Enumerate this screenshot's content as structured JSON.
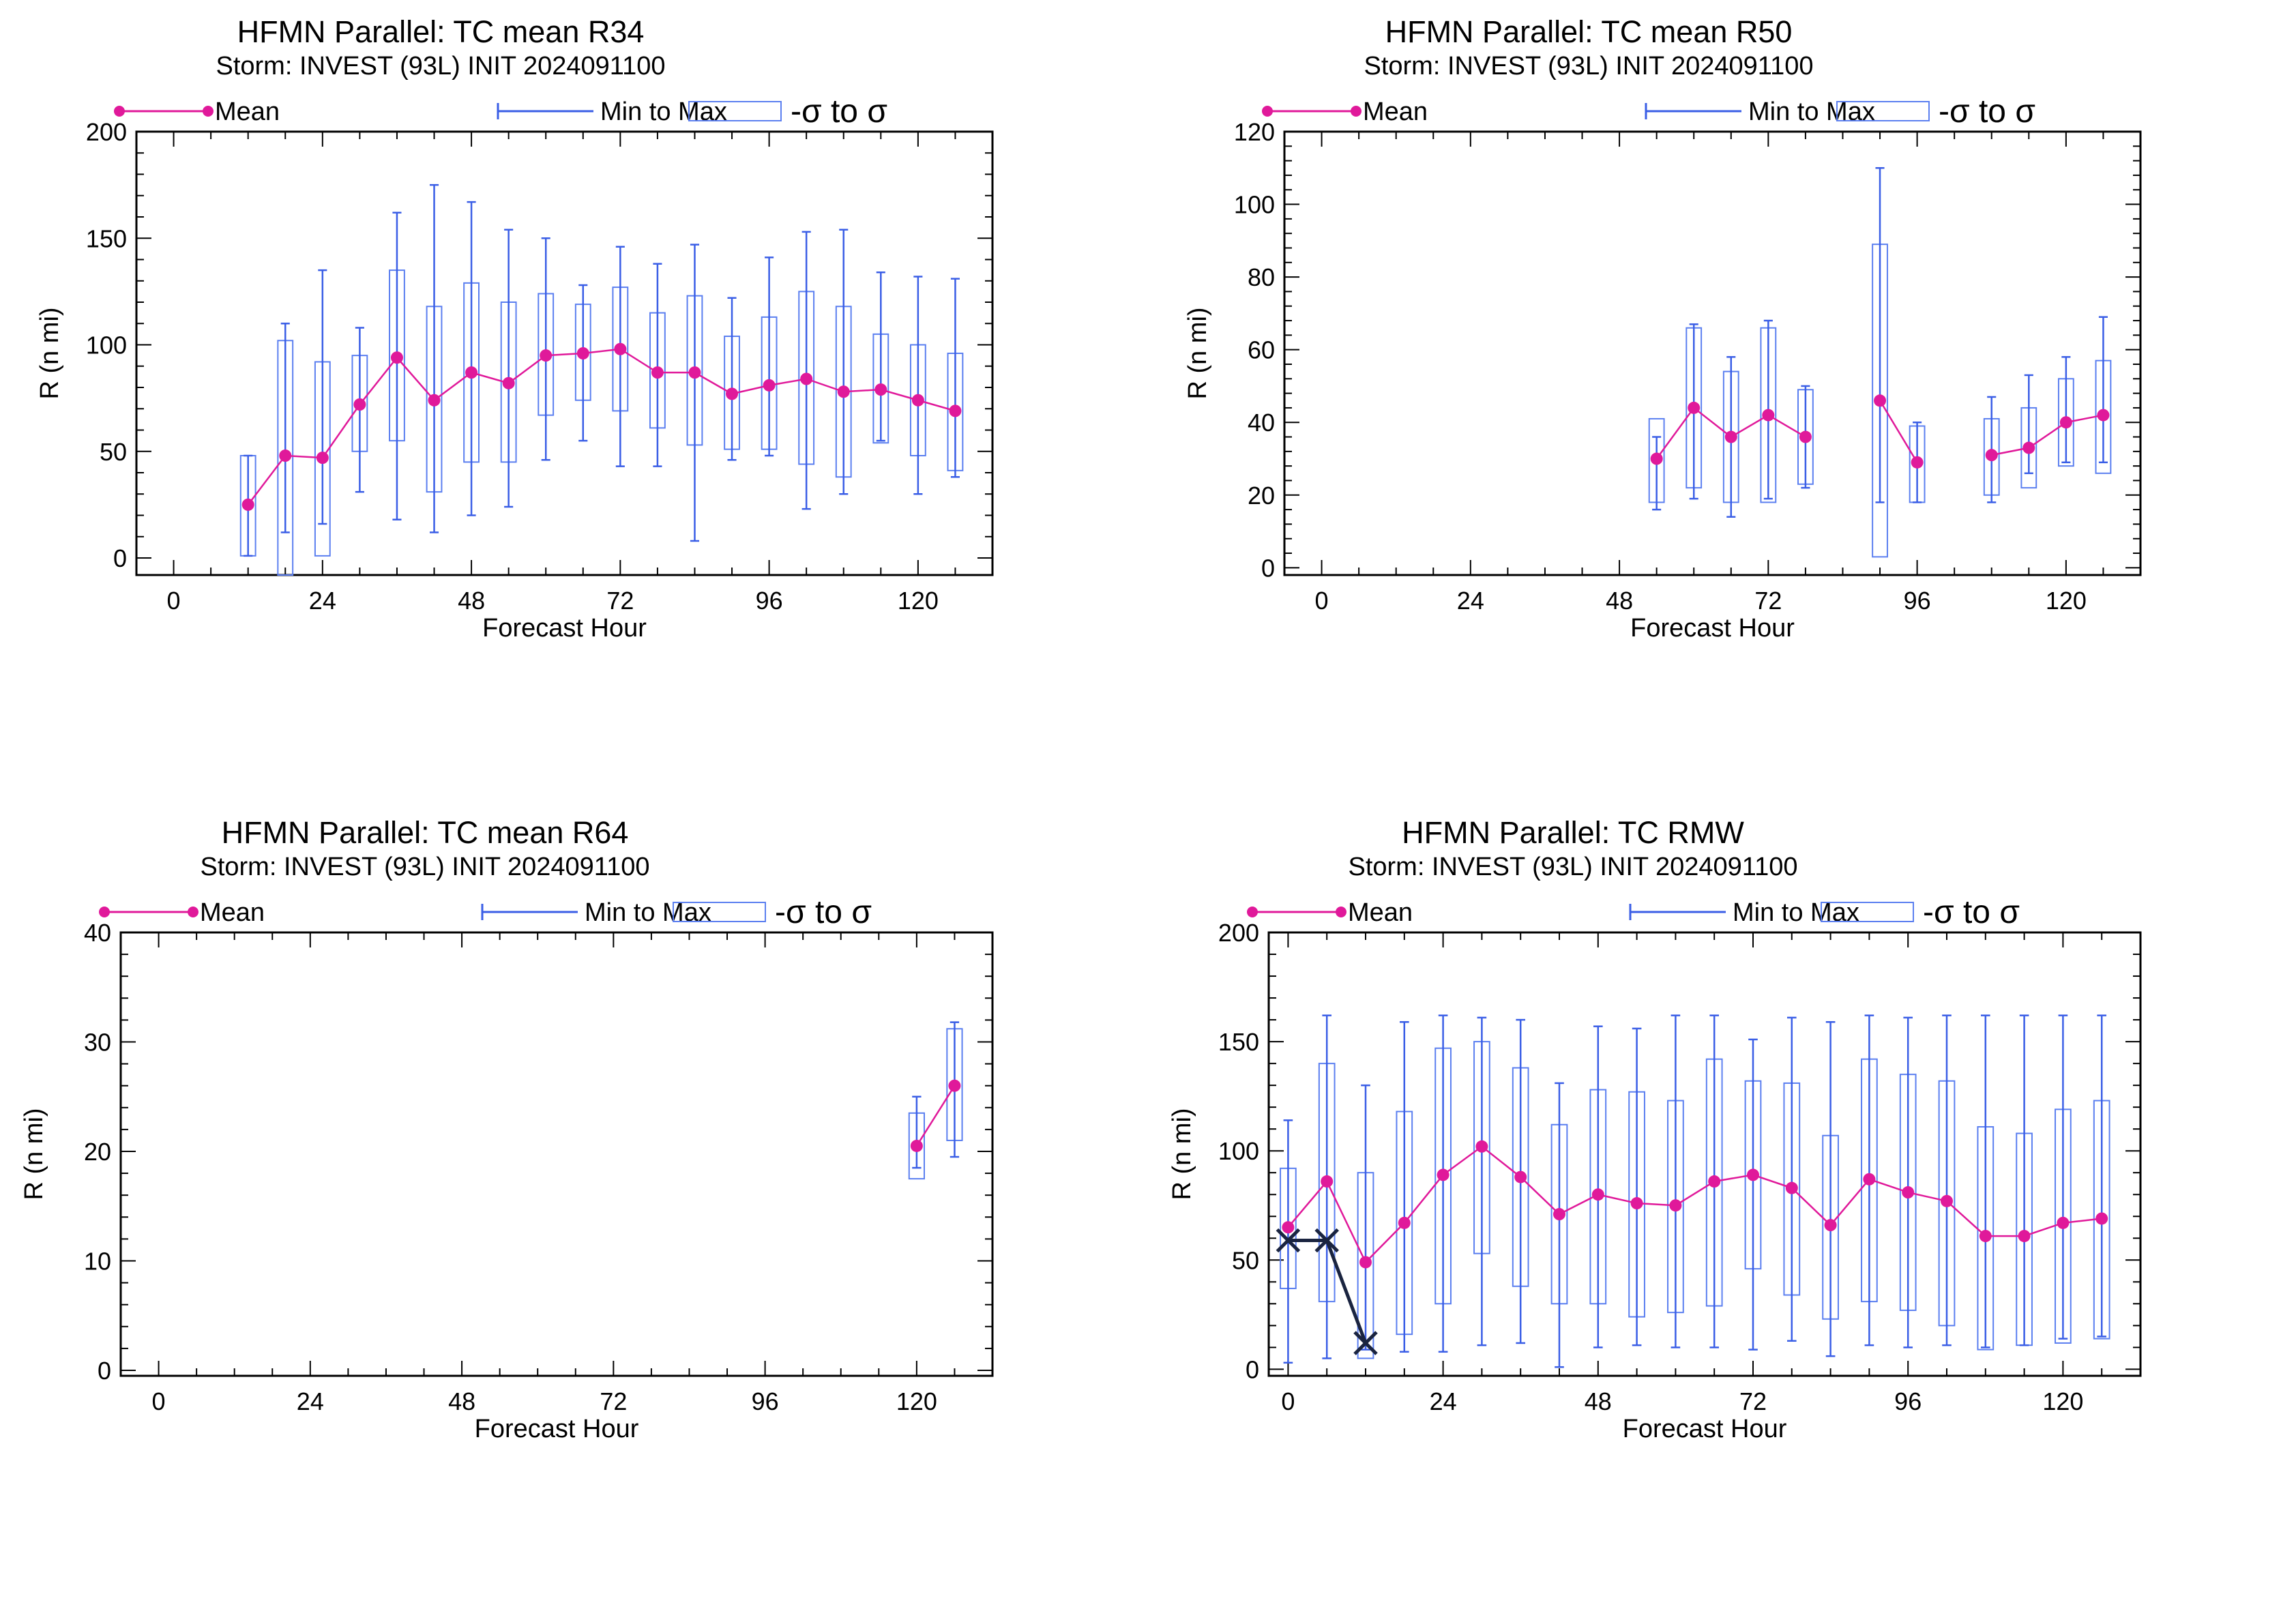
{
  "chart_data": [
    {
      "type": "box",
      "title": "HFMN Parallel: TC mean R34",
      "subtitle": "Storm: INVEST (93L) INIT 2024091100",
      "legend": {
        "mean": "Mean",
        "minmax": "Min to Max",
        "sigma": "-σ to σ"
      },
      "xlabel": "Forecast Hour",
      "ylabel": "R (n mi)",
      "xlim": [
        -6,
        132
      ],
      "ylim": [
        -8,
        200
      ],
      "xticks": [
        0,
        24,
        48,
        72,
        96,
        120
      ],
      "yticks": [
        0,
        50,
        100,
        150,
        200
      ],
      "points": [
        {
          "x": 12,
          "mean": 25,
          "min": 1,
          "max": 48,
          "lo": 1,
          "hi": 48
        },
        {
          "x": 18,
          "mean": 48,
          "min": 12,
          "max": 110,
          "lo": -8,
          "hi": 102
        },
        {
          "x": 24,
          "mean": 47,
          "min": 16,
          "max": 135,
          "lo": 1,
          "hi": 92
        },
        {
          "x": 30,
          "mean": 72,
          "min": 31,
          "max": 108,
          "lo": 50,
          "hi": 95
        },
        {
          "x": 36,
          "mean": 94,
          "min": 18,
          "max": 162,
          "lo": 55,
          "hi": 135
        },
        {
          "x": 42,
          "mean": 74,
          "min": 12,
          "max": 175,
          "lo": 31,
          "hi": 118
        },
        {
          "x": 48,
          "mean": 87,
          "min": 20,
          "max": 167,
          "lo": 45,
          "hi": 129
        },
        {
          "x": 54,
          "mean": 82,
          "min": 24,
          "max": 154,
          "lo": 45,
          "hi": 120
        },
        {
          "x": 60,
          "mean": 95,
          "min": 46,
          "max": 150,
          "lo": 67,
          "hi": 124
        },
        {
          "x": 66,
          "mean": 96,
          "min": 55,
          "max": 128,
          "lo": 74,
          "hi": 119
        },
        {
          "x": 72,
          "mean": 98,
          "min": 43,
          "max": 146,
          "lo": 69,
          "hi": 127
        },
        {
          "x": 78,
          "mean": 87,
          "min": 43,
          "max": 138,
          "lo": 61,
          "hi": 115
        },
        {
          "x": 84,
          "mean": 87,
          "min": 8,
          "max": 147,
          "lo": 53,
          "hi": 123
        },
        {
          "x": 90,
          "mean": 77,
          "min": 46,
          "max": 122,
          "lo": 51,
          "hi": 104
        },
        {
          "x": 96,
          "mean": 81,
          "min": 48,
          "max": 141,
          "lo": 51,
          "hi": 113
        },
        {
          "x": 102,
          "mean": 84,
          "min": 23,
          "max": 153,
          "lo": 44,
          "hi": 125
        },
        {
          "x": 108,
          "mean": 78,
          "min": 30,
          "max": 154,
          "lo": 38,
          "hi": 118
        },
        {
          "x": 114,
          "mean": 79,
          "min": 55,
          "max": 134,
          "lo": 54,
          "hi": 105
        },
        {
          "x": 120,
          "mean": 74,
          "min": 30,
          "max": 132,
          "lo": 48,
          "hi": 100
        },
        {
          "x": 126,
          "mean": 69,
          "min": 38,
          "max": 131,
          "lo": 41,
          "hi": 96
        }
      ]
    },
    {
      "type": "box",
      "title": "HFMN Parallel: TC mean R50",
      "subtitle": "Storm: INVEST (93L) INIT 2024091100",
      "legend": {
        "mean": "Mean",
        "minmax": "Min to Max",
        "sigma": "-σ to σ"
      },
      "xlabel": "Forecast Hour",
      "ylabel": "R (n mi)",
      "xlim": [
        -6,
        132
      ],
      "ylim": [
        -2,
        120
      ],
      "xticks": [
        0,
        24,
        48,
        72,
        96,
        120
      ],
      "yticks": [
        0,
        20,
        40,
        60,
        80,
        100,
        120
      ],
      "points": [
        {
          "x": 54,
          "mean": 30,
          "min": 16,
          "max": 36,
          "lo": 18,
          "hi": 41
        },
        {
          "x": 60,
          "mean": 44,
          "min": 19,
          "max": 67,
          "lo": 22,
          "hi": 66
        },
        {
          "x": 66,
          "mean": 36,
          "min": 14,
          "max": 58,
          "lo": 18,
          "hi": 54
        },
        {
          "x": 72,
          "mean": 42,
          "min": 19,
          "max": 68,
          "lo": 18,
          "hi": 66
        },
        {
          "x": 78,
          "mean": 36,
          "min": 22,
          "max": 50,
          "lo": 23,
          "hi": 49
        },
        {
          "x": 90,
          "mean": 46,
          "min": 18,
          "max": 110,
          "lo": 3,
          "hi": 89
        },
        {
          "x": 96,
          "mean": 29,
          "min": 18,
          "max": 40,
          "lo": 18,
          "hi": 39
        },
        {
          "x": 108,
          "mean": 31,
          "min": 18,
          "max": 47,
          "lo": 20,
          "hi": 41
        },
        {
          "x": 114,
          "mean": 33,
          "min": 26,
          "max": 53,
          "lo": 22,
          "hi": 44
        },
        {
          "x": 120,
          "mean": 40,
          "min": 29,
          "max": 58,
          "lo": 28,
          "hi": 52
        },
        {
          "x": 126,
          "mean": 42,
          "min": 29,
          "max": 69,
          "lo": 26,
          "hi": 57
        }
      ]
    },
    {
      "type": "box",
      "title": "HFMN Parallel: TC mean R64",
      "subtitle": "Storm: INVEST (93L) INIT 2024091100",
      "legend": {
        "mean": "Mean",
        "minmax": "Min to Max",
        "sigma": "-σ to σ"
      },
      "xlabel": "Forecast Hour",
      "ylabel": "R (n mi)",
      "xlim": [
        -6,
        132
      ],
      "ylim": [
        -0.5,
        40
      ],
      "xticks": [
        0,
        24,
        48,
        72,
        96,
        120
      ],
      "yticks": [
        0,
        10,
        20,
        30,
        40
      ],
      "points": [
        {
          "x": 120,
          "mean": 20.5,
          "min": 18.5,
          "max": 25,
          "lo": 17.5,
          "hi": 23.5
        },
        {
          "x": 126,
          "mean": 26,
          "min": 19.5,
          "max": 31.8,
          "lo": 21,
          "hi": 31.2
        }
      ]
    },
    {
      "type": "box",
      "title": "HFMN Parallel: TC RMW",
      "subtitle": "Storm: INVEST (93L) INIT 2024091100",
      "legend": {
        "mean": "Mean",
        "minmax": "Min to Max",
        "sigma": "-σ to σ"
      },
      "xlabel": "Forecast Hour",
      "ylabel": "R (n mi)",
      "xlim": [
        -3,
        132
      ],
      "ylim": [
        -3,
        200
      ],
      "xticks": [
        0,
        24,
        48,
        72,
        96,
        120
      ],
      "yticks": [
        0,
        50,
        100,
        150,
        200
      ],
      "points": [
        {
          "x": 0,
          "mean": 65,
          "min": 3,
          "max": 114,
          "lo": 37,
          "hi": 92
        },
        {
          "x": 6,
          "mean": 86,
          "min": 5,
          "max": 162,
          "lo": 31,
          "hi": 140
        },
        {
          "x": 12,
          "mean": 49,
          "min": 9,
          "max": 130,
          "lo": 5,
          "hi": 90
        },
        {
          "x": 18,
          "mean": 67,
          "min": 8,
          "max": 159,
          "lo": 16,
          "hi": 118
        },
        {
          "x": 24,
          "mean": 89,
          "min": 8,
          "max": 162,
          "lo": 30,
          "hi": 147
        },
        {
          "x": 30,
          "mean": 102,
          "min": 11,
          "max": 161,
          "lo": 53,
          "hi": 150
        },
        {
          "x": 36,
          "mean": 88,
          "min": 12,
          "max": 160,
          "lo": 38,
          "hi": 138
        },
        {
          "x": 42,
          "mean": 71,
          "min": 1,
          "max": 131,
          "lo": 30,
          "hi": 112
        },
        {
          "x": 48,
          "mean": 80,
          "min": 10,
          "max": 157,
          "lo": 30,
          "hi": 128
        },
        {
          "x": 54,
          "mean": 76,
          "min": 11,
          "max": 156,
          "lo": 24,
          "hi": 127
        },
        {
          "x": 60,
          "mean": 75,
          "min": 10,
          "max": 162,
          "lo": 26,
          "hi": 123
        },
        {
          "x": 66,
          "mean": 86,
          "min": 10,
          "max": 162,
          "lo": 29,
          "hi": 142
        },
        {
          "x": 72,
          "mean": 89,
          "min": 9,
          "max": 151,
          "lo": 46,
          "hi": 132
        },
        {
          "x": 78,
          "mean": 83,
          "min": 13,
          "max": 161,
          "lo": 34,
          "hi": 131
        },
        {
          "x": 84,
          "mean": 66,
          "min": 6,
          "max": 159,
          "lo": 23,
          "hi": 107
        },
        {
          "x": 90,
          "mean": 87,
          "min": 11,
          "max": 162,
          "lo": 31,
          "hi": 142
        },
        {
          "x": 96,
          "mean": 81,
          "min": 10,
          "max": 161,
          "lo": 27,
          "hi": 135
        },
        {
          "x": 102,
          "mean": 77,
          "min": 11,
          "max": 162,
          "lo": 20,
          "hi": 132
        },
        {
          "x": 108,
          "mean": 61,
          "min": 10,
          "max": 162,
          "lo": 9,
          "hi": 111
        },
        {
          "x": 114,
          "mean": 61,
          "min": 11,
          "max": 162,
          "lo": 11,
          "hi": 108
        },
        {
          "x": 120,
          "mean": 67,
          "min": 14,
          "max": 162,
          "lo": 12,
          "hi": 119
        },
        {
          "x": 126,
          "mean": 69,
          "min": 15,
          "max": 162,
          "lo": 14,
          "hi": 123
        }
      ],
      "observed": {
        "x": [
          0,
          6,
          12
        ],
        "y": [
          59,
          59,
          12
        ]
      }
    }
  ],
  "colors": {
    "mean": "#e0199a",
    "minmax": "#3a5ee6",
    "sigma": "#5b7ff0",
    "observed": "#1a2440"
  }
}
